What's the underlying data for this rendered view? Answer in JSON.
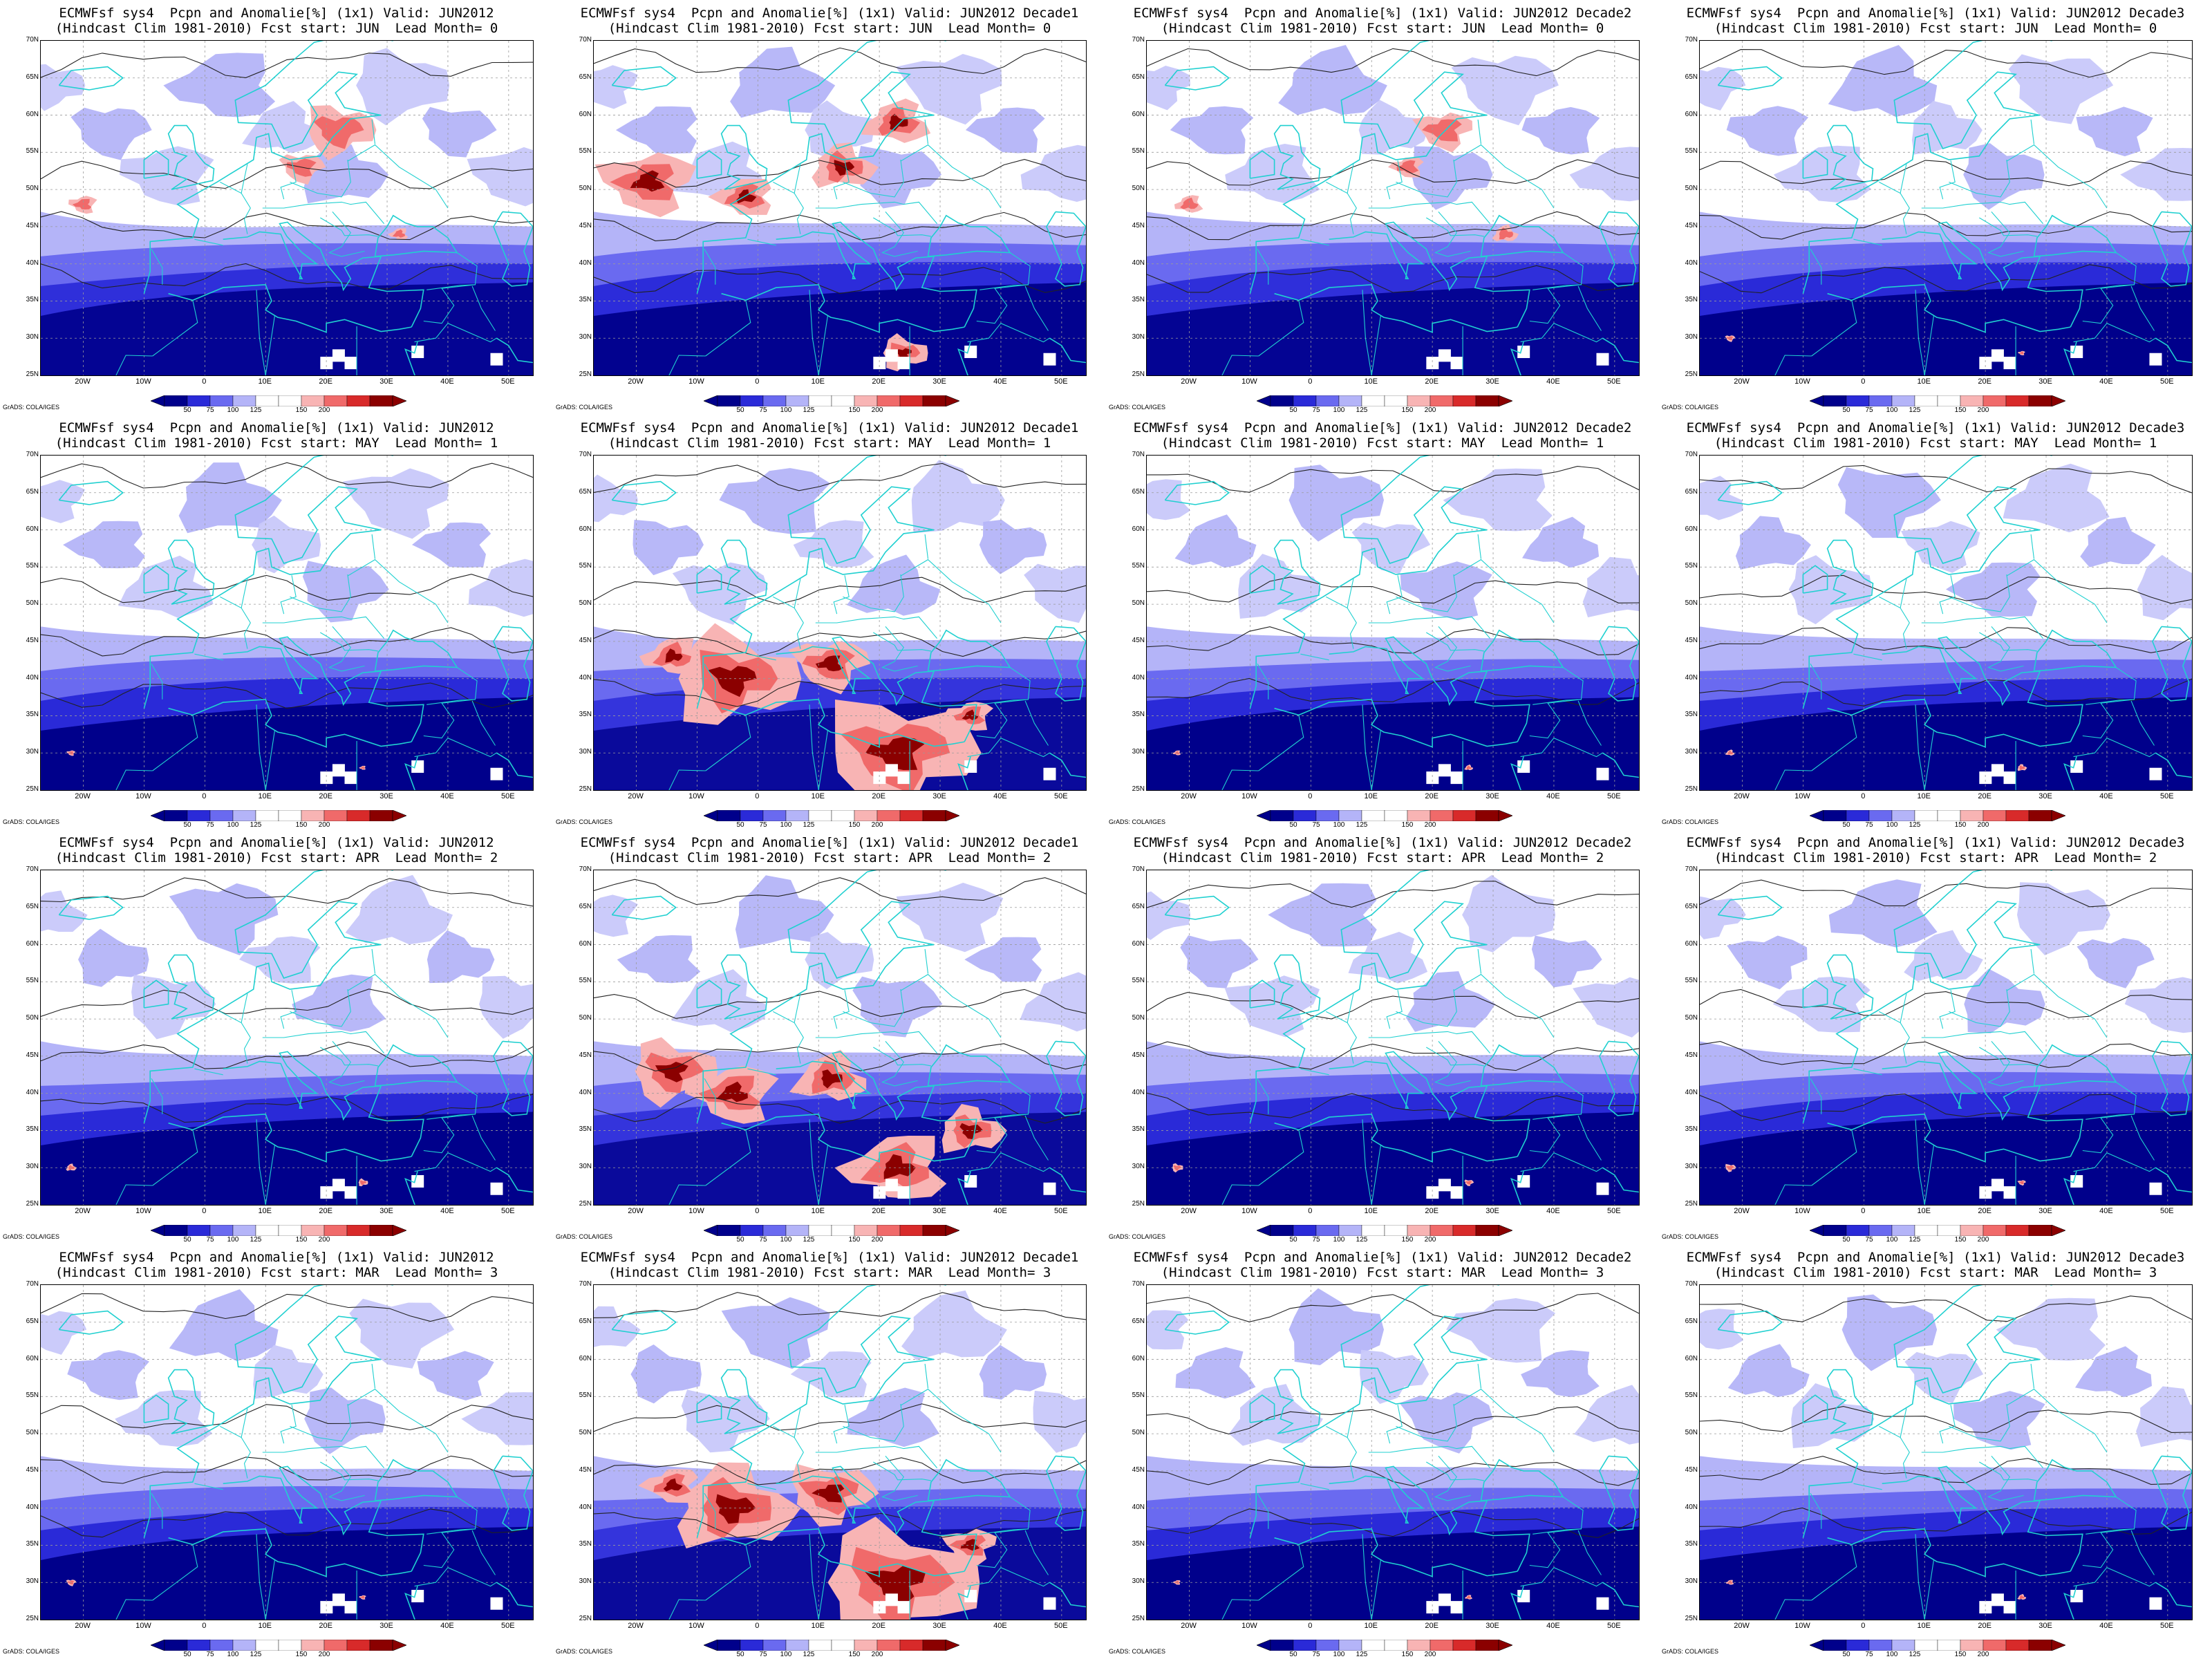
{
  "title_line1_prefix": "ECMWFsf sys4  Pcpn and Anomalie[%] (1x1) Valid: JUN2012",
  "columns": [
    "",
    " Decade1",
    " Decade2",
    " Decade3"
  ],
  "rows": [
    {
      "fcst_start": "JUN",
      "lead": "0"
    },
    {
      "fcst_start": "MAY",
      "lead": "1"
    },
    {
      "fcst_start": "APR",
      "lead": "2"
    },
    {
      "fcst_start": "MAR",
      "lead": "3"
    }
  ],
  "lat_labels": [
    "70N",
    "65N",
    "60N",
    "55N",
    "50N",
    "45N",
    "40N",
    "35N",
    "30N",
    "25N"
  ],
  "lon_labels": [
    "20W",
    "10W",
    "0",
    "10E",
    "20E",
    "30E",
    "40E",
    "50E"
  ],
  "colorbar": {
    "labels": [
      "50",
      "75",
      "100",
      "125",
      "150",
      "200"
    ],
    "colors": [
      "#00008b",
      "#2a2ad8",
      "#6a6af0",
      "#b4b4f8",
      "#ffffff",
      "#ffffff",
      "#f8b4b4",
      "#f06a6a",
      "#d82a2a",
      "#8b0000"
    ]
  },
  "credit": "GrADS: COLA/IGES",
  "panels": [
    {
      "title1": "ECMWFsf sys4  Pcpn and Anomalie[%] (1x1) Valid: JUN2012",
      "title2": "(Hindcast Clim 1981-2010) Fcst start: JUN  Lead Month= 0",
      "pattern": "wet-north"
    },
    {
      "title1": "ECMWFsf sys4  Pcpn and Anomalie[%] (1x1) Valid: JUN2012 Decade1",
      "title2": "(Hindcast Clim 1981-2010) Fcst start: JUN  Lead Month= 0",
      "pattern": "wet-west"
    },
    {
      "title1": "ECMWFsf sys4  Pcpn and Anomalie[%] (1x1) Valid: JUN2012 Decade2",
      "title2": "(Hindcast Clim 1981-2010) Fcst start: JUN  Lead Month= 0",
      "pattern": "wet-north"
    },
    {
      "title1": "ECMWFsf sys4  Pcpn and Anomalie[%] (1x1) Valid: JUN2012 Decade3",
      "title2": "(Hindcast Clim 1981-2010) Fcst start: JUN  Lead Month= 0",
      "pattern": "dry"
    },
    {
      "title1": "ECMWFsf sys4  Pcpn and Anomalie[%] (1x1) Valid: JUN2012",
      "title2": "(Hindcast Clim 1981-2010) Fcst start: MAY  Lead Month= 1",
      "pattern": "dry"
    },
    {
      "title1": "ECMWFsf sys4  Pcpn and Anomalie[%] (1x1) Valid: JUN2012 Decade1",
      "title2": "(Hindcast Clim 1981-2010) Fcst start: MAY  Lead Month= 1",
      "pattern": "wet-south"
    },
    {
      "title1": "ECMWFsf sys4  Pcpn and Anomalie[%] (1x1) Valid: JUN2012 Decade2",
      "title2": "(Hindcast Clim 1981-2010) Fcst start: MAY  Lead Month= 1",
      "pattern": "dry"
    },
    {
      "title1": "ECMWFsf sys4  Pcpn and Anomalie[%] (1x1) Valid: JUN2012 Decade3",
      "title2": "(Hindcast Clim 1981-2010) Fcst start: MAY  Lead Month= 1",
      "pattern": "dry"
    },
    {
      "title1": "ECMWFsf sys4  Pcpn and Anomalie[%] (1x1) Valid: JUN2012",
      "title2": "(Hindcast Clim 1981-2010) Fcst start: APR  Lead Month= 2",
      "pattern": "dry"
    },
    {
      "title1": "ECMWFsf sys4  Pcpn and Anomalie[%] (1x1) Valid: JUN2012 Decade1",
      "title2": "(Hindcast Clim 1981-2010) Fcst start: APR  Lead Month= 2",
      "pattern": "wet-south"
    },
    {
      "title1": "ECMWFsf sys4  Pcpn and Anomalie[%] (1x1) Valid: JUN2012 Decade2",
      "title2": "(Hindcast Clim 1981-2010) Fcst start: APR  Lead Month= 2",
      "pattern": "dry"
    },
    {
      "title1": "ECMWFsf sys4  Pcpn and Anomalie[%] (1x1) Valid: JUN2012 Decade3",
      "title2": "(Hindcast Clim 1981-2010) Fcst start: APR  Lead Month= 2",
      "pattern": "dry"
    },
    {
      "title1": "ECMWFsf sys4  Pcpn and Anomalie[%] (1x1) Valid: JUN2012",
      "title2": "(Hindcast Clim 1981-2010) Fcst start: MAR  Lead Month= 3",
      "pattern": "dry"
    },
    {
      "title1": "ECMWFsf sys4  Pcpn and Anomalie[%] (1x1) Valid: JUN2012 Decade1",
      "title2": "(Hindcast Clim 1981-2010) Fcst start: MAR  Lead Month= 3",
      "pattern": "wet-south"
    },
    {
      "title1": "ECMWFsf sys4  Pcpn and Anomalie[%] (1x1) Valid: JUN2012 Decade2",
      "title2": "(Hindcast Clim 1981-2010) Fcst start: MAR  Lead Month= 3",
      "pattern": "dry"
    },
    {
      "title1": "ECMWFsf sys4  Pcpn and Anomalie[%] (1x1) Valid: JUN2012 Decade3",
      "title2": "(Hindcast Clim 1981-2010) Fcst start: MAR  Lead Month= 3",
      "pattern": "dry"
    }
  ]
}
